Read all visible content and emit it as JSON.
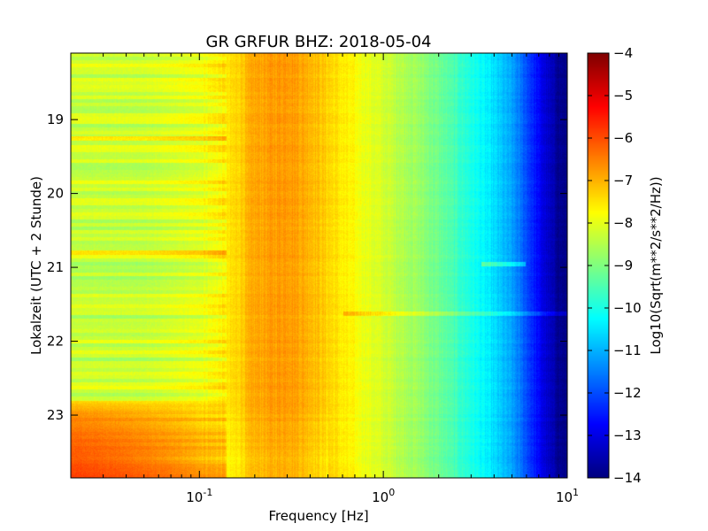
{
  "chart_data": {
    "type": "heatmap",
    "title": "GR GRFUR BHZ: 2018-05-04",
    "xlabel": "Frequency [Hz]",
    "ylabel": "Lokalzeit (UTC + 2 Stunde)",
    "x_scale": "log",
    "xlim": [
      0.02,
      10
    ],
    "x_ticks": [
      {
        "value": 0.1,
        "base": "10",
        "exp": "-1"
      },
      {
        "value": 1,
        "base": "10",
        "exp": "0"
      },
      {
        "value": 10,
        "base": "10",
        "exp": "1"
      }
    ],
    "ylim": [
      18.1,
      23.85
    ],
    "y_inverted": true,
    "y_ticks": [
      19,
      20,
      21,
      22,
      23
    ],
    "y_tick_labels": [
      "19",
      "20",
      "21",
      "22",
      "23"
    ],
    "colorbar": {
      "label": "Log10(Sqrt(m**2/s**2/Hz))",
      "range": [
        -14,
        -4
      ],
      "ticks": [
        -4,
        -5,
        -6,
        -7,
        -8,
        -9,
        -10,
        -11,
        -12,
        -13,
        -14
      ],
      "tick_labels": [
        "−4",
        "−5",
        "−6",
        "−7",
        "−8",
        "−9",
        "−10",
        "−11",
        "−12",
        "−13",
        "−14"
      ],
      "colormap": "jet"
    },
    "spectrum_profile": {
      "frequency": [
        0.02,
        0.05,
        0.1,
        0.14,
        0.2,
        0.3,
        0.4,
        0.6,
        1.0,
        1.5,
        2.0,
        3.0,
        4.0,
        5.0,
        6.0,
        7.0,
        8.0,
        9.0,
        10.0
      ],
      "level": [
        -8.3,
        -8.3,
        -8.0,
        -7.6,
        -6.9,
        -6.7,
        -7.0,
        -7.6,
        -8.2,
        -8.7,
        -9.2,
        -10.0,
        -10.6,
        -11.2,
        -12.0,
        -12.8,
        -13.4,
        -13.8,
        -14.0
      ]
    },
    "late_hours_offset": {
      "hour": [
        22.8,
        23.0,
        23.4,
        23.85
      ],
      "low_freq_level": [
        -7.4,
        -6.6,
        -6.2,
        -5.9
      ]
    },
    "features": [
      {
        "hour": 21.62,
        "description": "broadband horizontal line"
      },
      {
        "hour": 20.95,
        "frequency": 4.5,
        "description": "short high-frequency burst"
      },
      {
        "hour": 19.25,
        "description": "low frequency elevated band"
      },
      {
        "hour": 20.8,
        "description": "low frequency elevated band"
      }
    ]
  }
}
